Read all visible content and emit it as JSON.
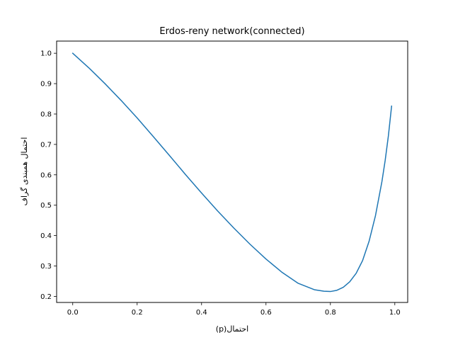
{
  "chart_data": {
    "type": "line",
    "title": "Erdos-reny network(connected)",
    "xlabel": "احتمال(p)",
    "ylabel": "احتمال همبندی گراف",
    "xlim": [
      -0.05,
      1.04
    ],
    "ylim": [
      0.18,
      1.04
    ],
    "xticks": [
      0.0,
      0.2,
      0.4,
      0.6,
      0.8,
      1.0
    ],
    "xtick_labels": [
      "0.0",
      "0.2",
      "0.4",
      "0.6",
      "0.8",
      "1.0"
    ],
    "yticks": [
      0.2,
      0.3,
      0.4,
      0.5,
      0.6,
      0.7,
      0.8,
      0.9,
      1.0
    ],
    "ytick_labels": [
      "0.2",
      "0.3",
      "0.4",
      "0.5",
      "0.6",
      "0.7",
      "0.8",
      "0.9",
      "1.0"
    ],
    "grid": false,
    "series": [
      {
        "color": "#1f77b4",
        "x": [
          0.0,
          0.05,
          0.1,
          0.15,
          0.2,
          0.25,
          0.3,
          0.35,
          0.4,
          0.45,
          0.5,
          0.55,
          0.6,
          0.65,
          0.7,
          0.75,
          0.78,
          0.8,
          0.82,
          0.84,
          0.86,
          0.88,
          0.9,
          0.92,
          0.94,
          0.96,
          0.97,
          0.98,
          0.99
        ],
        "y": [
          1.0,
          0.952,
          0.9,
          0.845,
          0.787,
          0.726,
          0.664,
          0.601,
          0.54,
          0.481,
          0.425,
          0.372,
          0.323,
          0.279,
          0.243,
          0.222,
          0.217,
          0.216,
          0.22,
          0.23,
          0.248,
          0.276,
          0.318,
          0.381,
          0.466,
          0.578,
          0.647,
          0.728,
          0.826
        ]
      }
    ]
  }
}
